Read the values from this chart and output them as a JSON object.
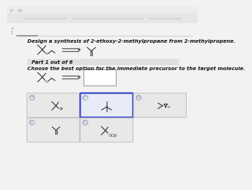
{
  "bg_color": "#f2f2f2",
  "white": "#ffffff",
  "title_text": "Design a synthesis of 2-ethoxy-2-methylpropane from 2-methylpropene.",
  "part_text": "Part 1 out of 6",
  "question_text": "Choose the best option for the immediate precursor to the target molecule.",
  "part_bg": "#e0e0e0",
  "option_b_border": "#4455cc",
  "option_bg": "#e8e8e8",
  "option_b_bg": "#e8ecf8",
  "mol_color": "#333333",
  "text_color": "#111111",
  "arrow_color": "#555555",
  "nav_bg": "#ececec",
  "nav_bar_bg": "#d8d8d8",
  "circle_bg": "#b0b8cc",
  "circle_text": "#ffffff"
}
